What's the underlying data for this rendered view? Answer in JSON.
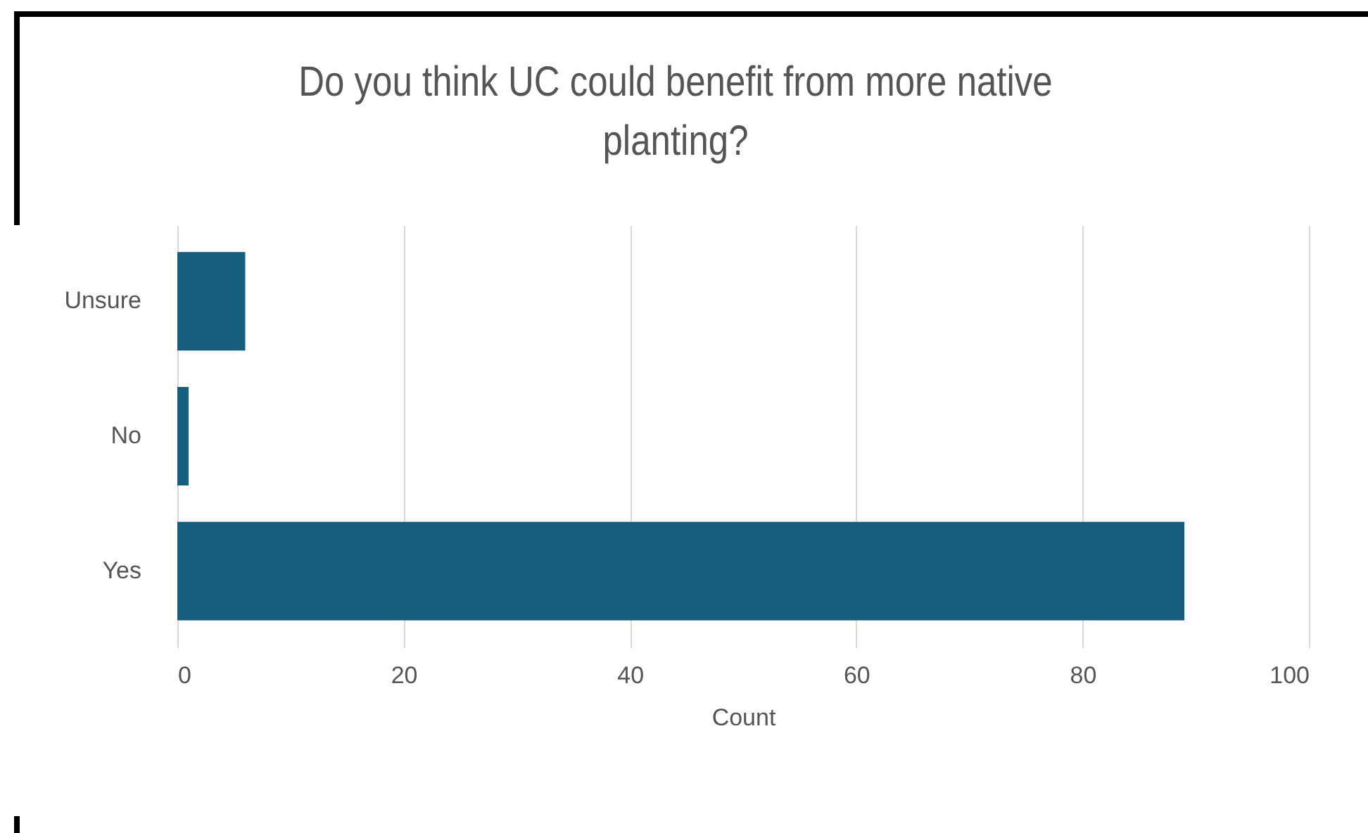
{
  "chart_data": {
    "type": "bar",
    "orientation": "horizontal",
    "title": "Do you think UC could benefit from more native planting?",
    "xlabel": "Count",
    "categories": [
      "Unsure",
      "No",
      "Yes"
    ],
    "values": [
      6,
      1,
      89
    ],
    "color": "#175e7e",
    "xlim": [
      0,
      100
    ],
    "xticks": [
      0,
      20,
      40,
      60,
      80,
      100
    ],
    "grid": "x"
  }
}
